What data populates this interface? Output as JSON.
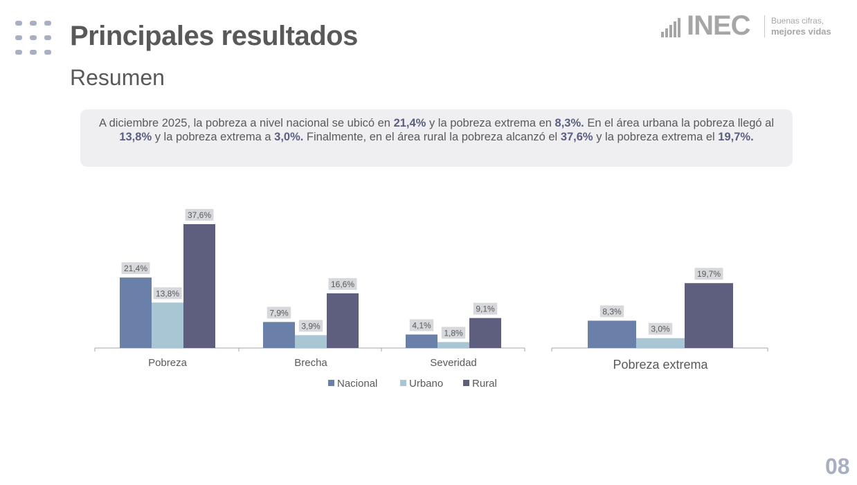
{
  "header": {
    "title": "Principales resultados",
    "subtitle": "Resumen"
  },
  "logo": {
    "mark": "INEC",
    "tagline_1": "Buenas cifras,",
    "tagline_2": "mejores vidas"
  },
  "summary": {
    "segments": [
      {
        "text": "A diciembre 2025, la pobreza a nivel nacional se ubicó en ",
        "bold": false
      },
      {
        "text": "21,4%",
        "bold": true
      },
      {
        "text": " y la pobreza extrema en ",
        "bold": false
      },
      {
        "text": "8,3%.",
        "bold": true
      },
      {
        "text": " En el área urbana la pobreza llegó al ",
        "bold": false
      },
      {
        "text": "13,8%",
        "bold": true
      },
      {
        "text": " y la pobreza extrema a ",
        "bold": false
      },
      {
        "text": "3,0%.",
        "bold": true
      },
      {
        "text": " Finalmente,  en el área rural la pobreza alcanzó el ",
        "bold": false
      },
      {
        "text": "37,6%",
        "bold": true
      },
      {
        "text": " y la pobreza extrema el  ",
        "bold": false
      },
      {
        "text": "19,7%.",
        "bold": true
      }
    ]
  },
  "colors": {
    "nacional": "#6a80a8",
    "urbano": "#a9c6d4",
    "rural": "#5e5e7e",
    "label_bg": "#d6d8dc",
    "axis": "#a6a6a6",
    "text": "#595959"
  },
  "chart_data": [
    {
      "type": "bar",
      "title": "",
      "categories": [
        "Pobreza",
        "Brecha",
        "Severidad"
      ],
      "series": [
        {
          "name": "Nacional",
          "values": [
            21.4,
            7.9,
            4.1
          ],
          "labels": [
            "21,4%",
            "7,9%",
            "4,1%"
          ]
        },
        {
          "name": "Urbano",
          "values": [
            13.8,
            3.9,
            1.8
          ],
          "labels": [
            "13,8%",
            "3,9%",
            "1,8%"
          ]
        },
        {
          "name": "Rural",
          "values": [
            37.6,
            16.6,
            9.1
          ],
          "labels": [
            "37,6%",
            "16,6%",
            "9,1%"
          ]
        }
      ],
      "ylim": [
        0,
        40
      ],
      "grid": false,
      "legend": "bottom",
      "xlabel": "",
      "ylabel": ""
    },
    {
      "type": "bar",
      "title": "",
      "categories": [
        "Pobreza extrema"
      ],
      "series": [
        {
          "name": "Nacional",
          "values": [
            8.3
          ],
          "labels": [
            "8,3%"
          ]
        },
        {
          "name": "Urbano",
          "values": [
            3.0
          ],
          "labels": [
            "3,0%"
          ]
        },
        {
          "name": "Rural",
          "values": [
            19.7
          ],
          "labels": [
            "19,7%"
          ]
        }
      ],
      "ylim": [
        0,
        40
      ],
      "grid": false,
      "legend": "none",
      "xlabel": "",
      "ylabel": ""
    }
  ],
  "footer": {
    "page_number": "08"
  }
}
